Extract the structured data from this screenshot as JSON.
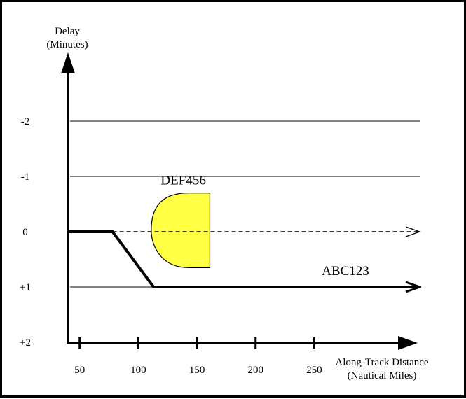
{
  "chart_data": {
    "type": "line",
    "y_axis_label": [
      "Delay",
      "(Minutes)"
    ],
    "x_axis_label": [
      "Along-Track Distance",
      "(Nautical Miles)"
    ],
    "x_ticks": [
      50,
      100,
      150,
      200,
      250
    ],
    "x_tick_labels": [
      "50",
      "100",
      "150",
      "200",
      "250"
    ],
    "y_ticks": [
      -2,
      -1,
      0,
      1,
      2
    ],
    "y_tick_labels": [
      "-2",
      "-1",
      "0",
      "+1",
      "+2"
    ],
    "gridlines_at_y": [
      -2,
      -1,
      1
    ],
    "xlim": [
      40,
      340
    ],
    "ylim": [
      2,
      -3
    ],
    "series": [
      {
        "name": "ABC123",
        "style": "solid-thick-arrow",
        "x": [
          40,
          78,
          113,
          340
        ],
        "y": [
          0,
          0,
          1,
          1
        ]
      },
      {
        "name": "",
        "style": "dashed-open-arrow",
        "x": [
          78,
          340
        ],
        "y": [
          0,
          0
        ]
      }
    ],
    "region": {
      "name": "DEF456",
      "color": "#ffff44",
      "x_left_round": 111,
      "x_right_flat": 161,
      "y_top": -0.7,
      "y_bottom": 0.65
    },
    "colors": {
      "axes": "#000000",
      "grid": "#000000",
      "region_fill": "#ffff44",
      "region_stroke": "#000000"
    }
  }
}
